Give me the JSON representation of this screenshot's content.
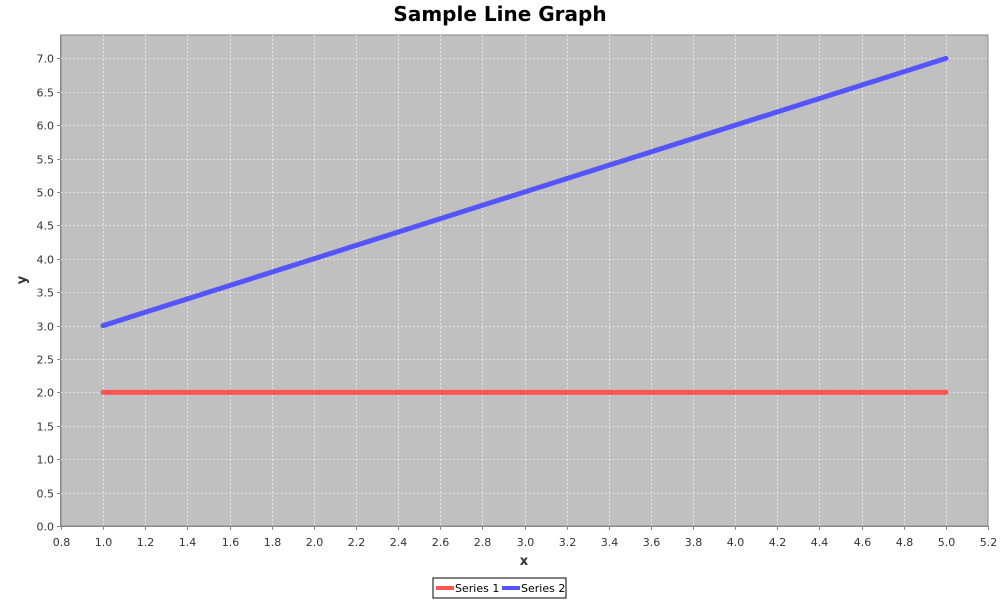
{
  "chart_data": {
    "type": "line",
    "title": "Sample Line Graph",
    "xlabel": "x",
    "ylabel": "y",
    "xlim": [
      0.8,
      5.2
    ],
    "ylim": [
      0.0,
      7.35
    ],
    "x_ticks": [
      0.8,
      1.0,
      1.2,
      1.4,
      1.6,
      1.8,
      2.0,
      2.2,
      2.4,
      2.6,
      2.8,
      3.0,
      3.2,
      3.4,
      3.6,
      3.8,
      4.0,
      4.2,
      4.4,
      4.6,
      4.8,
      5.0,
      5.2
    ],
    "y_ticks": [
      0.0,
      0.5,
      1.0,
      1.5,
      2.0,
      2.5,
      3.0,
      3.5,
      4.0,
      4.5,
      5.0,
      5.5,
      6.0,
      6.5,
      7.0
    ],
    "grid": true,
    "legend_position": "bottom-center",
    "plot_background": "#c0c0c0",
    "grid_color": "#ffffff",
    "series": [
      {
        "name": "Series 1",
        "color": "#ff5555",
        "x": [
          1.0,
          5.0
        ],
        "y": [
          2.0,
          2.0
        ]
      },
      {
        "name": "Series 2",
        "color": "#5555ff",
        "x": [
          1.0,
          5.0
        ],
        "y": [
          3.0,
          7.0
        ]
      }
    ]
  }
}
